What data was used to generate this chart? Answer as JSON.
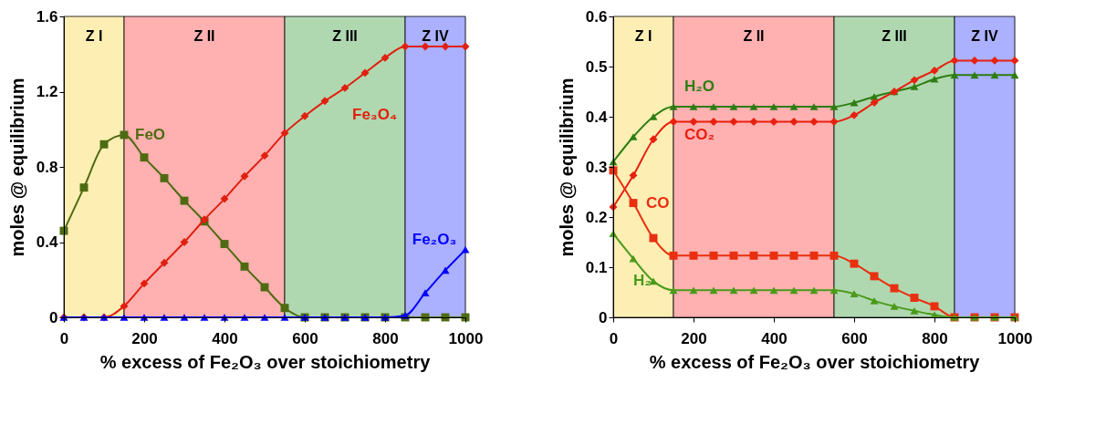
{
  "chart_data": [
    {
      "type": "line",
      "xlabel": "% excess of Fe₂O₃ over stoichiometry",
      "ylabel": "moles @ equilibrium",
      "x": [
        0,
        50,
        100,
        150,
        200,
        250,
        300,
        350,
        400,
        450,
        500,
        550,
        600,
        650,
        700,
        750,
        800,
        850,
        900,
        950,
        1000
      ],
      "xlim": [
        0,
        1000
      ],
      "xticks": [
        0,
        200,
        400,
        600,
        800,
        1000
      ],
      "ylim": [
        0,
        1.6
      ],
      "yticks": [
        0,
        0.4,
        0.8,
        1.2,
        1.6
      ],
      "grid": false,
      "legend": false,
      "bands": [
        {
          "axis": "x",
          "from": 0,
          "to": 150,
          "label": "Z I",
          "color": "#fdeeb4"
        },
        {
          "axis": "x",
          "from": 150,
          "to": 550,
          "label": "Z II",
          "color": "#ffb0b0"
        },
        {
          "axis": "x",
          "from": 550,
          "to": 850,
          "label": "Z III",
          "color": "#b0d8b0"
        },
        {
          "axis": "x",
          "from": 850,
          "to": 1000,
          "label": "Z IV",
          "color": "#abb0ff"
        }
      ],
      "series": [
        {
          "name": "FeO",
          "color": "#4f6b12",
          "marker": "square",
          "values": [
            0.46,
            0.69,
            0.92,
            0.97,
            0.85,
            0.74,
            0.62,
            0.51,
            0.39,
            0.27,
            0.16,
            0.05,
            0,
            0,
            0,
            0,
            0,
            0,
            0,
            0,
            0
          ]
        },
        {
          "name": "Fe₃O₄",
          "color": "#e02010",
          "marker": "diamond",
          "values": [
            0,
            0,
            0,
            0.06,
            0.18,
            0.29,
            0.4,
            0.52,
            0.63,
            0.75,
            0.86,
            0.98,
            1.07,
            1.15,
            1.22,
            1.3,
            1.38,
            1.44,
            1.44,
            1.44,
            1.44
          ]
        },
        {
          "name": "Fe₂O₃",
          "color": "#0000ff",
          "marker": "triangle",
          "values": [
            0,
            0,
            0,
            0,
            0,
            0,
            0,
            0,
            0,
            0,
            0,
            0,
            0,
            0,
            0,
            0,
            0,
            0.01,
            0.13,
            0.25,
            0.36
          ]
        }
      ]
    },
    {
      "type": "line",
      "xlabel": "% excess of Fe₂O₃ over stoichiometry",
      "ylabel": "moles @ equilibrium",
      "x": [
        0,
        50,
        100,
        150,
        200,
        250,
        300,
        350,
        400,
        450,
        500,
        550,
        600,
        650,
        700,
        750,
        800,
        850,
        900,
        950,
        1000
      ],
      "xlim": [
        0,
        1000
      ],
      "xticks": [
        0,
        200,
        400,
        600,
        800,
        1000
      ],
      "ylim": [
        0,
        0.6
      ],
      "yticks": [
        0,
        0.1,
        0.2,
        0.3,
        0.4,
        0.5,
        0.6
      ],
      "grid": false,
      "legend": false,
      "bands": [
        {
          "axis": "x",
          "from": 0,
          "to": 150,
          "label": "Z I",
          "color": "#fdeeb4"
        },
        {
          "axis": "x",
          "from": 150,
          "to": 550,
          "label": "Z II",
          "color": "#ffb0b0"
        },
        {
          "axis": "x",
          "from": 550,
          "to": 850,
          "label": "Z III",
          "color": "#b0d8b0"
        },
        {
          "axis": "x",
          "from": 850,
          "to": 1000,
          "label": "Z IV",
          "color": "#abb0ff"
        }
      ],
      "series": [
        {
          "name": "H₂O",
          "color": "#2e7d12",
          "marker": "triangle",
          "values": [
            0.31,
            0.36,
            0.4,
            0.42,
            0.42,
            0.42,
            0.42,
            0.42,
            0.42,
            0.42,
            0.42,
            0.42,
            0.428,
            0.44,
            0.45,
            0.46,
            0.475,
            0.483,
            0.483,
            0.483,
            0.483
          ]
        },
        {
          "name": "CO₂",
          "color": "#e82010",
          "marker": "diamond",
          "values": [
            0.22,
            0.283,
            0.355,
            0.39,
            0.39,
            0.39,
            0.39,
            0.39,
            0.39,
            0.39,
            0.39,
            0.39,
            0.403,
            0.428,
            0.45,
            0.473,
            0.492,
            0.512,
            0.512,
            0.512,
            0.512
          ]
        },
        {
          "name": "CO",
          "color": "#e83010",
          "marker": "square",
          "values": [
            0.293,
            0.228,
            0.158,
            0.123,
            0.123,
            0.123,
            0.123,
            0.123,
            0.123,
            0.123,
            0.123,
            0.123,
            0.107,
            0.082,
            0.058,
            0.039,
            0.022,
            0,
            0,
            0,
            0
          ]
        },
        {
          "name": "H₂",
          "color": "#4a9a1a",
          "marker": "triangle",
          "values": [
            0.167,
            0.117,
            0.072,
            0.054,
            0.054,
            0.054,
            0.054,
            0.054,
            0.054,
            0.054,
            0.054,
            0.054,
            0.047,
            0.033,
            0.022,
            0.013,
            0.005,
            0,
            0,
            0,
            0
          ]
        }
      ]
    }
  ]
}
